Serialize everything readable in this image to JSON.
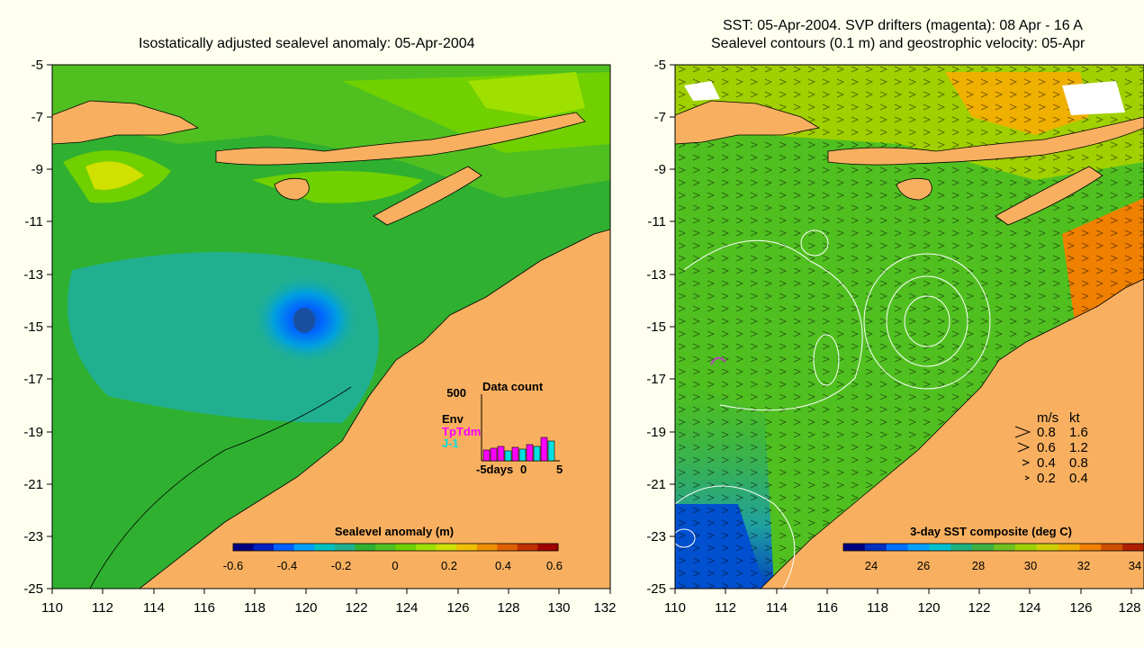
{
  "left_panel": {
    "title": "Isostatically adjusted sealevel anomaly: 05-Apr-2004",
    "y_ticks": [
      "-5",
      "-7",
      "-9",
      "-11",
      "-13",
      "-15",
      "-17",
      "-19",
      "-21",
      "-23",
      "-25"
    ],
    "x_ticks": [
      "110",
      "112",
      "114",
      "116",
      "118",
      "120",
      "122",
      "124",
      "126",
      "128",
      "130",
      "132"
    ],
    "colorbar": {
      "label": "Sealevel anomaly (m)",
      "ticks": [
        "-0.6",
        "-0.4",
        "-0.2",
        "0",
        "0.2",
        "0.4",
        "0.6"
      ]
    },
    "data_count": {
      "title": "Data count",
      "ymax": "500",
      "legend": [
        {
          "name": "Env",
          "color": "#000000"
        },
        {
          "name": "TpTdm",
          "color": "#ff00ff"
        },
        {
          "name": "J-1",
          "color": "#00e0e0"
        }
      ],
      "x_ticks": [
        "-5days",
        "0",
        "5"
      ]
    }
  },
  "right_panel": {
    "title_line1": "SST: 05-Apr-2004. SVP drifters (magenta): 08 Apr - 16 A",
    "title_line2": "Sealevel contours (0.1 m) and geostrophic velocity: 05-Apr",
    "y_ticks": [
      "-5",
      "-7",
      "-9",
      "-11",
      "-13",
      "-15",
      "-17",
      "-19",
      "-21",
      "-23",
      "-25"
    ],
    "x_ticks": [
      "110",
      "112",
      "114",
      "116",
      "118",
      "120",
      "122",
      "124",
      "126",
      "128"
    ],
    "colorbar": {
      "label": "3-day SST composite (deg C)",
      "ticks": [
        "24",
        "26",
        "28",
        "30",
        "32",
        "34"
      ]
    },
    "speed_legend": {
      "header_ms": "m/s",
      "header_kt": "kt",
      "rows": [
        {
          "ms": "0.8",
          "kt": "1.6"
        },
        {
          "ms": "0.6",
          "kt": "1.2"
        },
        {
          "ms": "0.4",
          "kt": "0.8"
        },
        {
          "ms": "0.2",
          "kt": "0.4"
        }
      ]
    }
  },
  "colors": {
    "land": "#f8b060",
    "background": "#fffff0",
    "sla_scale": [
      "#000080",
      "#0020c0",
      "#0060ff",
      "#00a0ff",
      "#00c0c0",
      "#20b090",
      "#30b030",
      "#50c020",
      "#70d000",
      "#a0e000",
      "#d0e000",
      "#f0c000",
      "#f09000",
      "#e06000",
      "#c03000",
      "#a00000"
    ],
    "sst_scale": [
      "#000080",
      "#0030c0",
      "#0070ff",
      "#00a0ff",
      "#00c0d0",
      "#20b080",
      "#40b040",
      "#70c020",
      "#a0d000",
      "#d0d000",
      "#f0b000",
      "#f08000",
      "#d05000",
      "#b02000"
    ]
  }
}
